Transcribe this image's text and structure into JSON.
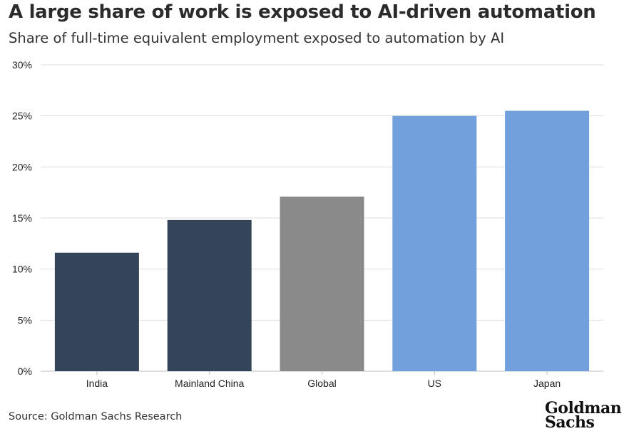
{
  "header": {
    "title": "A large share of work is exposed to AI-driven automation",
    "subtitle": "Share of full-time equivalent employment exposed to automation by AI"
  },
  "footer": {
    "source": "Source: Goldman Sachs Research",
    "logo_line1": "Goldman",
    "logo_line2": "Sachs"
  },
  "chart_data": {
    "type": "bar",
    "title": "A large share of work is exposed to AI-driven automation",
    "subtitle": "Share of full-time equivalent employment exposed to automation by AI",
    "categories": [
      "India",
      "Mainland China",
      "Global",
      "US",
      "Japan"
    ],
    "values": [
      11.6,
      14.8,
      17.1,
      25.0,
      25.5
    ],
    "colors": [
      "#344459",
      "#344459",
      "#8a8a8a",
      "#72a0dc",
      "#72a0dc"
    ],
    "ylim": [
      0,
      30
    ],
    "yticks": [
      0,
      5,
      10,
      15,
      20,
      25,
      30
    ],
    "ytick_labels": [
      "0%",
      "5%",
      "10%",
      "15%",
      "20%",
      "25%",
      "30%"
    ],
    "xlabel": "",
    "ylabel": "",
    "grid": true,
    "legend": "none"
  }
}
